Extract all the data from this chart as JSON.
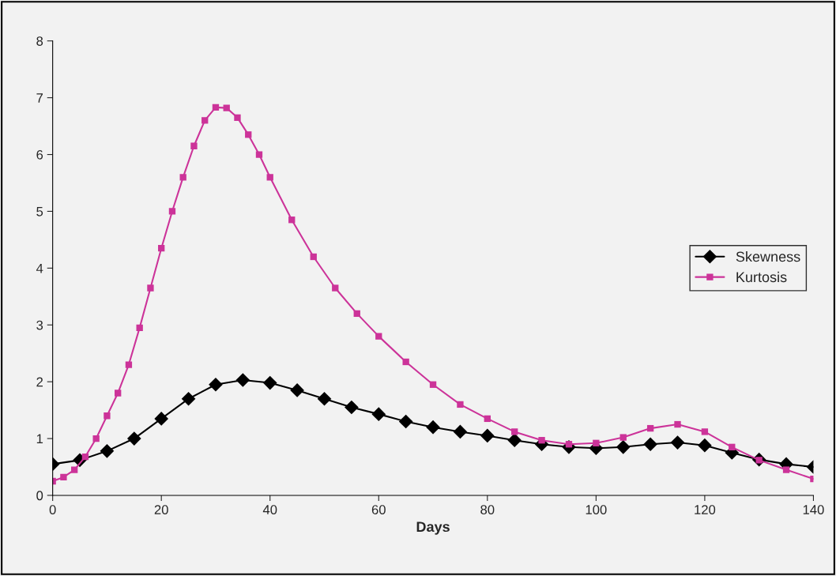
{
  "chart_data": {
    "type": "line",
    "xlabel": "Days",
    "xlim": [
      0,
      140
    ],
    "xticks": [
      0,
      20,
      40,
      60,
      80,
      100,
      120,
      140
    ],
    "ylim": [
      0,
      8
    ],
    "yticks": [
      0,
      1,
      2,
      3,
      4,
      5,
      6,
      7,
      8
    ],
    "grid": false,
    "legend": "right",
    "series": [
      {
        "name": "Skewness",
        "color": "#000000",
        "marker": "diamond",
        "x": [
          0,
          5,
          10,
          15,
          20,
          25,
          30,
          35,
          40,
          45,
          50,
          55,
          60,
          65,
          70,
          75,
          80,
          85,
          90,
          95,
          100,
          105,
          110,
          115,
          120,
          125,
          130,
          135,
          140
        ],
        "values": [
          0.55,
          0.62,
          0.78,
          1.0,
          1.35,
          1.7,
          1.95,
          2.03,
          1.98,
          1.85,
          1.7,
          1.55,
          1.43,
          1.3,
          1.2,
          1.12,
          1.05,
          0.97,
          0.9,
          0.85,
          0.83,
          0.85,
          0.9,
          0.93,
          0.88,
          0.75,
          0.63,
          0.55,
          0.5
        ]
      },
      {
        "name": "Kurtosis",
        "color": "#cc3399",
        "marker": "square",
        "x": [
          0,
          2,
          4,
          6,
          8,
          10,
          12,
          14,
          16,
          18,
          20,
          22,
          24,
          26,
          28,
          30,
          32,
          34,
          36,
          38,
          40,
          44,
          48,
          52,
          56,
          60,
          65,
          70,
          75,
          80,
          85,
          90,
          95,
          100,
          105,
          110,
          115,
          120,
          125,
          130,
          135,
          140
        ],
        "values": [
          0.25,
          0.32,
          0.45,
          0.68,
          1.0,
          1.4,
          1.8,
          2.3,
          2.95,
          3.65,
          4.35,
          5.0,
          5.6,
          6.15,
          6.6,
          6.83,
          6.82,
          6.65,
          6.35,
          6.0,
          5.6,
          4.85,
          4.2,
          3.65,
          3.2,
          2.8,
          2.35,
          1.95,
          1.6,
          1.35,
          1.12,
          0.97,
          0.9,
          0.92,
          1.02,
          1.18,
          1.25,
          1.12,
          0.85,
          0.62,
          0.45,
          0.29
        ]
      }
    ]
  }
}
